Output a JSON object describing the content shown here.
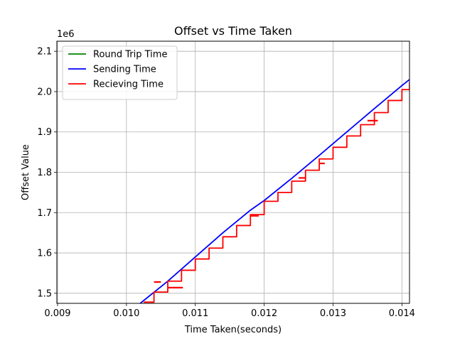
{
  "chart_data": {
    "type": "line",
    "title": "Offset vs Time Taken",
    "xlabel": "Time Taken(seconds)",
    "ylabel": "Offset Value",
    "y_offset_label": "1e6",
    "xlim": [
      0.00899,
      0.01411
    ],
    "ylim": [
      1475000,
      2125000
    ],
    "x_ticks": [
      0.009,
      0.01,
      0.011,
      0.012,
      0.013,
      0.014
    ],
    "x_tick_labels": [
      "0.009",
      "0.010",
      "0.011",
      "0.012",
      "0.013",
      "0.014"
    ],
    "y_ticks": [
      1500000,
      1600000,
      1700000,
      1800000,
      1900000,
      2000000,
      2100000
    ],
    "y_tick_labels": [
      "1.5",
      "1.6",
      "1.7",
      "1.8",
      "1.9",
      "2.0",
      "2.1"
    ],
    "grid": true,
    "legend_position": "upper-left",
    "series": [
      {
        "name": "Round Trip Time",
        "color": "#008000",
        "style": "line",
        "x": [],
        "y": []
      },
      {
        "name": "Sending Time",
        "color": "#0000ff",
        "style": "line",
        "x": [
          0.0102,
          0.0106,
          0.011,
          0.0114,
          0.0118,
          0.012,
          0.0124,
          0.0128,
          0.0132,
          0.0136,
          0.014,
          0.01411
        ],
        "y": [
          1475000,
          1530000,
          1590000,
          1650000,
          1706000,
          1730000,
          1785000,
          1842000,
          1900000,
          1958000,
          2015000,
          2030000
        ]
      },
      {
        "name": "Recieving Time",
        "color": "#ff0000",
        "style": "step",
        "x": [
          0.01025,
          0.0104,
          0.0106,
          0.0108,
          0.011,
          0.0112,
          0.0114,
          0.0116,
          0.0118,
          0.012,
          0.0122,
          0.0124,
          0.0126,
          0.0128,
          0.013,
          0.0132,
          0.0134,
          0.0136,
          0.0138,
          0.014,
          0.01411
        ],
        "y": [
          1478000,
          1503000,
          1530000,
          1557000,
          1585000,
          1612000,
          1640000,
          1668000,
          1695000,
          1728000,
          1750000,
          1778000,
          1805000,
          1833000,
          1862000,
          1890000,
          1918000,
          1948000,
          1978000,
          2005000,
          2023000
        ],
        "spikes": [
          {
            "x": 0.0106,
            "y": 1514000,
            "dx": 0.00022
          },
          {
            "x": 0.0118,
            "y": 1692000,
            "dx": 0.00012
          },
          {
            "x": 0.0125,
            "y": 1786000,
            "dx": 0.0001
          },
          {
            "x": 0.0135,
            "y": 1928000,
            "dx": 0.00015
          },
          {
            "x": 0.0104,
            "y": 1528000,
            "dx": 0.0001
          },
          {
            "x": 0.0128,
            "y": 1822000,
            "dx": 8e-05
          }
        ]
      }
    ]
  }
}
